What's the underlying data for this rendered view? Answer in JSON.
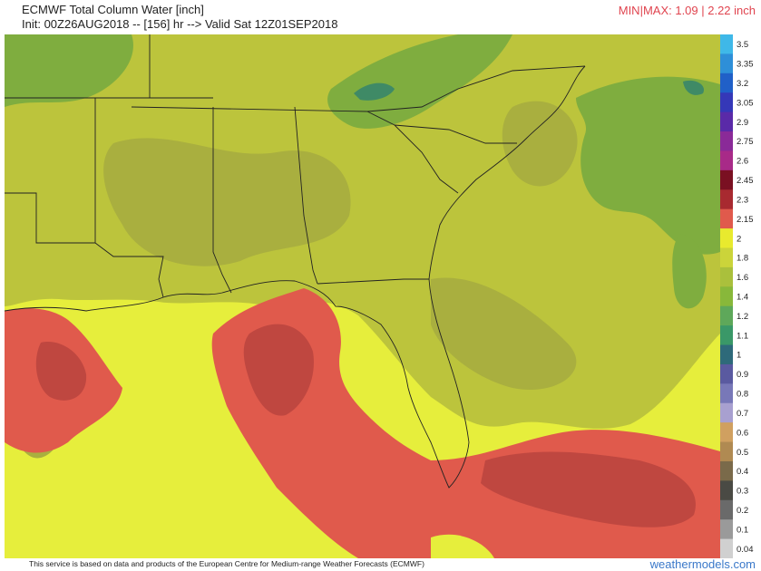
{
  "header": {
    "title": "ECMWF Total Column Water [inch]",
    "init_line": "Init: 00Z26AUG2018 -- [156] hr --> Valid Sat 12Z01SEP2018",
    "minmax": "MIN|MAX: 1.09 | 2.22 inch"
  },
  "map": {
    "region": "Southeast United States, Gulf of Mexico and western Atlantic",
    "colors": {
      "yellow": "#e6ee3c",
      "olive": "#bcc43c",
      "olive_dark": "#a9af3f",
      "green": "#7fad3f",
      "teal": "#3f8a66",
      "red": "#e05a4c",
      "red_dark": "#bf4740",
      "borders": "#222222"
    }
  },
  "legend": {
    "labels": [
      "3.5",
      "3.35",
      "3.2",
      "3.05",
      "2.9",
      "2.75",
      "2.6",
      "2.45",
      "2.3",
      "2.15",
      "2",
      "1.8",
      "1.6",
      "1.4",
      "1.2",
      "1.1",
      "1",
      "0.9",
      "0.8",
      "0.7",
      "0.6",
      "0.5",
      "0.4",
      "0.3",
      "0.2",
      "0.1",
      "0.04"
    ],
    "colors": [
      "#3fb8e8",
      "#2e8fd8",
      "#2060c8",
      "#3538b8",
      "#5a2aa8",
      "#8a2a98",
      "#a82a88",
      "#7a1022",
      "#a82a30",
      "#e05a4c",
      "#e8ea2e",
      "#cbd43a",
      "#aac03c",
      "#88b83a",
      "#5ea85a",
      "#3a9868",
      "#2e6a7a",
      "#5a5aa0",
      "#7878b8",
      "#a8a0d0",
      "#d0a060",
      "#b08a52",
      "#7a6a4a",
      "#4a4a44",
      "#6a6a6a",
      "#9a9a9a",
      "#d0d0d0"
    ]
  },
  "footer": {
    "credit": "This service is based on data and products of the European Centre for Medium-range Weather Forecasts (ECMWF)",
    "site": "weathermodels.com"
  }
}
